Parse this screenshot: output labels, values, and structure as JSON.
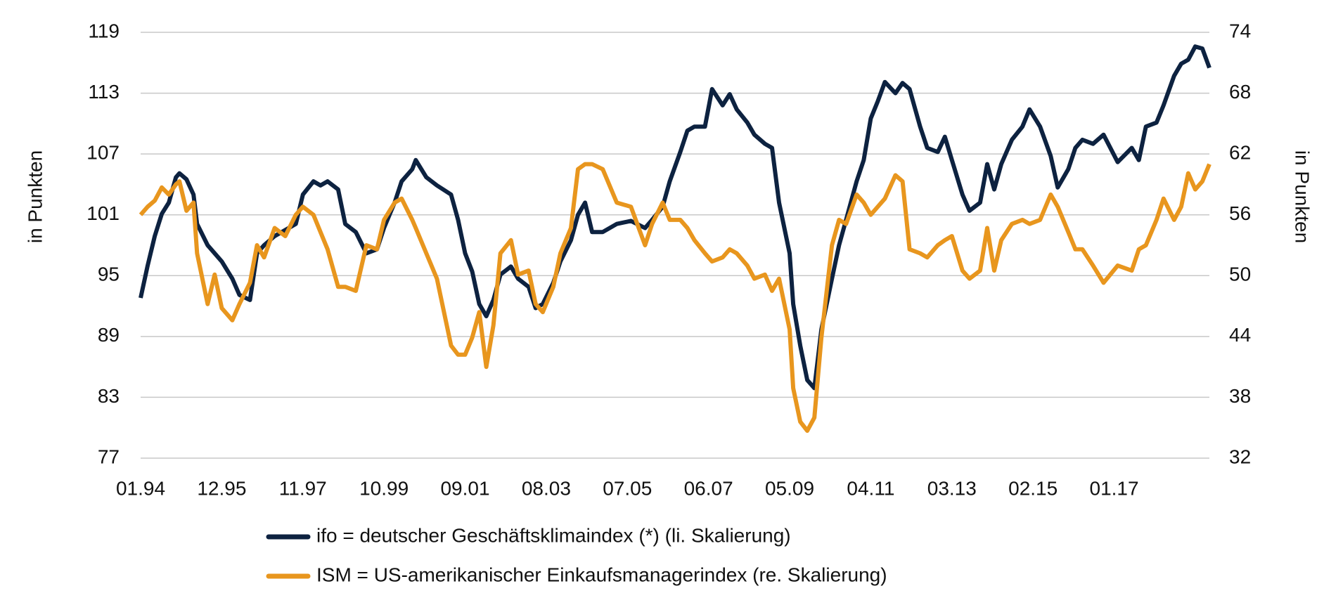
{
  "chart_data": {
    "type": "line",
    "y_label": "in Punkten",
    "y2_label": "in Punkten",
    "x": [
      0,
      2,
      4,
      6,
      8,
      10,
      11,
      13,
      15,
      16,
      19,
      21,
      23,
      26,
      28,
      31,
      33,
      35,
      38,
      41,
      44,
      46,
      49,
      51,
      53,
      56,
      58,
      61,
      64,
      67,
      69,
      72,
      74,
      77,
      78,
      81,
      84,
      88,
      90,
      92,
      94,
      96,
      98,
      100,
      102,
      105,
      107,
      110,
      112,
      114,
      117,
      119,
      122,
      124,
      126,
      128,
      131,
      135,
      139,
      143,
      145,
      148,
      150,
      153,
      155,
      157,
      160,
      162,
      165,
      167,
      169,
      172,
      174,
      177,
      179,
      181,
      184,
      185,
      187,
      189,
      191,
      193,
      196,
      198,
      200,
      203,
      205,
      207,
      209,
      211,
      214,
      216,
      218,
      221,
      223,
      226,
      228,
      230,
      233,
      235,
      238,
      240,
      242,
      244,
      247,
      250,
      252,
      255,
      258,
      260,
      263,
      265,
      267,
      270,
      273,
      277,
      281,
      283,
      285,
      288,
      290,
      293,
      295,
      297,
      299,
      301,
      303
    ],
    "xlim": [
      0,
      303
    ],
    "xticks": [
      {
        "value": 0,
        "label": "01.94"
      },
      {
        "value": 23,
        "label": "12.95"
      },
      {
        "value": 46,
        "label": "11.97"
      },
      {
        "value": 69,
        "label": "10.99"
      },
      {
        "value": 92,
        "label": "09.01"
      },
      {
        "value": 115,
        "label": "08.03"
      },
      {
        "value": 138,
        "label": "07.05"
      },
      {
        "value": 161,
        "label": "06.07"
      },
      {
        "value": 184,
        "label": "05.09"
      },
      {
        "value": 207,
        "label": "04.11"
      },
      {
        "value": 230,
        "label": "03.13"
      },
      {
        "value": 253,
        "label": "02.15"
      },
      {
        "value": 276,
        "label": "01.17"
      }
    ],
    "ylim": [
      77,
      119
    ],
    "yticks": [
      77,
      83,
      89,
      95,
      101,
      107,
      113,
      119
    ],
    "y2lim": [
      32,
      74
    ],
    "y2ticks": [
      32,
      38,
      44,
      50,
      56,
      62,
      68,
      74
    ],
    "grid": true,
    "series": [
      {
        "name": "ifo = deutscher Geschäftsklimaindex (*) (li. Skalierung)",
        "color": "#0d2240",
        "values": [
          92.8,
          96.0,
          98.9,
          101.1,
          102.2,
          104.7,
          105.1,
          104.5,
          103.0,
          100.1,
          98.0,
          97.2,
          96.4,
          94.7,
          93.1,
          92.6,
          97.2,
          98.0,
          98.9,
          99.5,
          100.1,
          103.0,
          104.3,
          103.9,
          104.3,
          103.5,
          100.1,
          99.3,
          97.2,
          97.6,
          99.7,
          102.2,
          104.3,
          105.5,
          106.4,
          104.7,
          103.9,
          103.0,
          100.5,
          97.2,
          95.4,
          92.2,
          91.0,
          92.6,
          95.1,
          95.9,
          94.7,
          93.9,
          91.8,
          92.2,
          94.3,
          96.4,
          98.5,
          101.0,
          102.2,
          99.3,
          99.3,
          100.1,
          100.4,
          99.7,
          100.5,
          101.8,
          104.3,
          107.2,
          109.3,
          109.7,
          109.7,
          113.4,
          111.8,
          112.9,
          111.4,
          110.1,
          108.9,
          108.0,
          107.6,
          102.2,
          97.2,
          92.2,
          88.1,
          84.7,
          83.9,
          89.7,
          94.7,
          98.0,
          100.5,
          104.3,
          106.4,
          110.5,
          112.2,
          114.1,
          113.0,
          114.0,
          113.4,
          109.7,
          107.6,
          107.2,
          108.7,
          106.4,
          103.0,
          101.4,
          102.2,
          106.0,
          103.5,
          106.0,
          108.4,
          109.7,
          111.4,
          109.7,
          106.8,
          103.7,
          105.5,
          107.6,
          108.4,
          108.0,
          108.9,
          106.2,
          107.6,
          106.4,
          109.7,
          110.1,
          111.8,
          114.7,
          115.9,
          116.3,
          117.6,
          117.4,
          115.5
        ]
      },
      {
        "name": "ISM = US-amerikanischer Einkaufsmanagerindex (re. Skalierung)",
        "color": "#e8961e",
        "axis": "y2",
        "values": [
          56.0,
          56.8,
          57.4,
          58.7,
          58.0,
          59.0,
          59.3,
          56.4,
          57.2,
          52.2,
          47.2,
          50.1,
          46.8,
          45.6,
          47.2,
          49.3,
          53.0,
          51.8,
          54.7,
          53.9,
          56.0,
          56.8,
          56.0,
          54.3,
          52.6,
          48.9,
          48.9,
          48.5,
          53.0,
          52.6,
          55.5,
          57.2,
          57.6,
          55.5,
          54.7,
          52.2,
          49.7,
          43.1,
          42.2,
          42.2,
          43.9,
          46.4,
          41.0,
          45.1,
          52.2,
          53.5,
          50.1,
          50.5,
          47.2,
          46.4,
          48.9,
          52.2,
          54.7,
          60.5,
          61.0,
          61.0,
          60.5,
          57.2,
          56.8,
          53.0,
          55.1,
          57.2,
          55.5,
          55.5,
          54.7,
          53.5,
          52.2,
          51.4,
          51.8,
          52.6,
          52.2,
          51.0,
          49.7,
          50.1,
          48.5,
          49.7,
          44.7,
          38.9,
          35.6,
          34.7,
          36.0,
          43.9,
          53.0,
          55.5,
          55.1,
          58.0,
          57.2,
          56.0,
          56.8,
          57.6,
          59.9,
          59.3,
          52.6,
          52.2,
          51.8,
          53.0,
          53.5,
          53.9,
          50.5,
          49.7,
          50.5,
          54.7,
          50.5,
          53.5,
          55.1,
          55.5,
          55.1,
          55.5,
          58.0,
          56.8,
          54.3,
          52.6,
          52.6,
          51.0,
          49.3,
          51.0,
          50.5,
          52.6,
          53.0,
          55.5,
          57.6,
          55.5,
          56.8,
          60.1,
          58.5,
          59.3,
          61.0
        ]
      }
    ]
  }
}
